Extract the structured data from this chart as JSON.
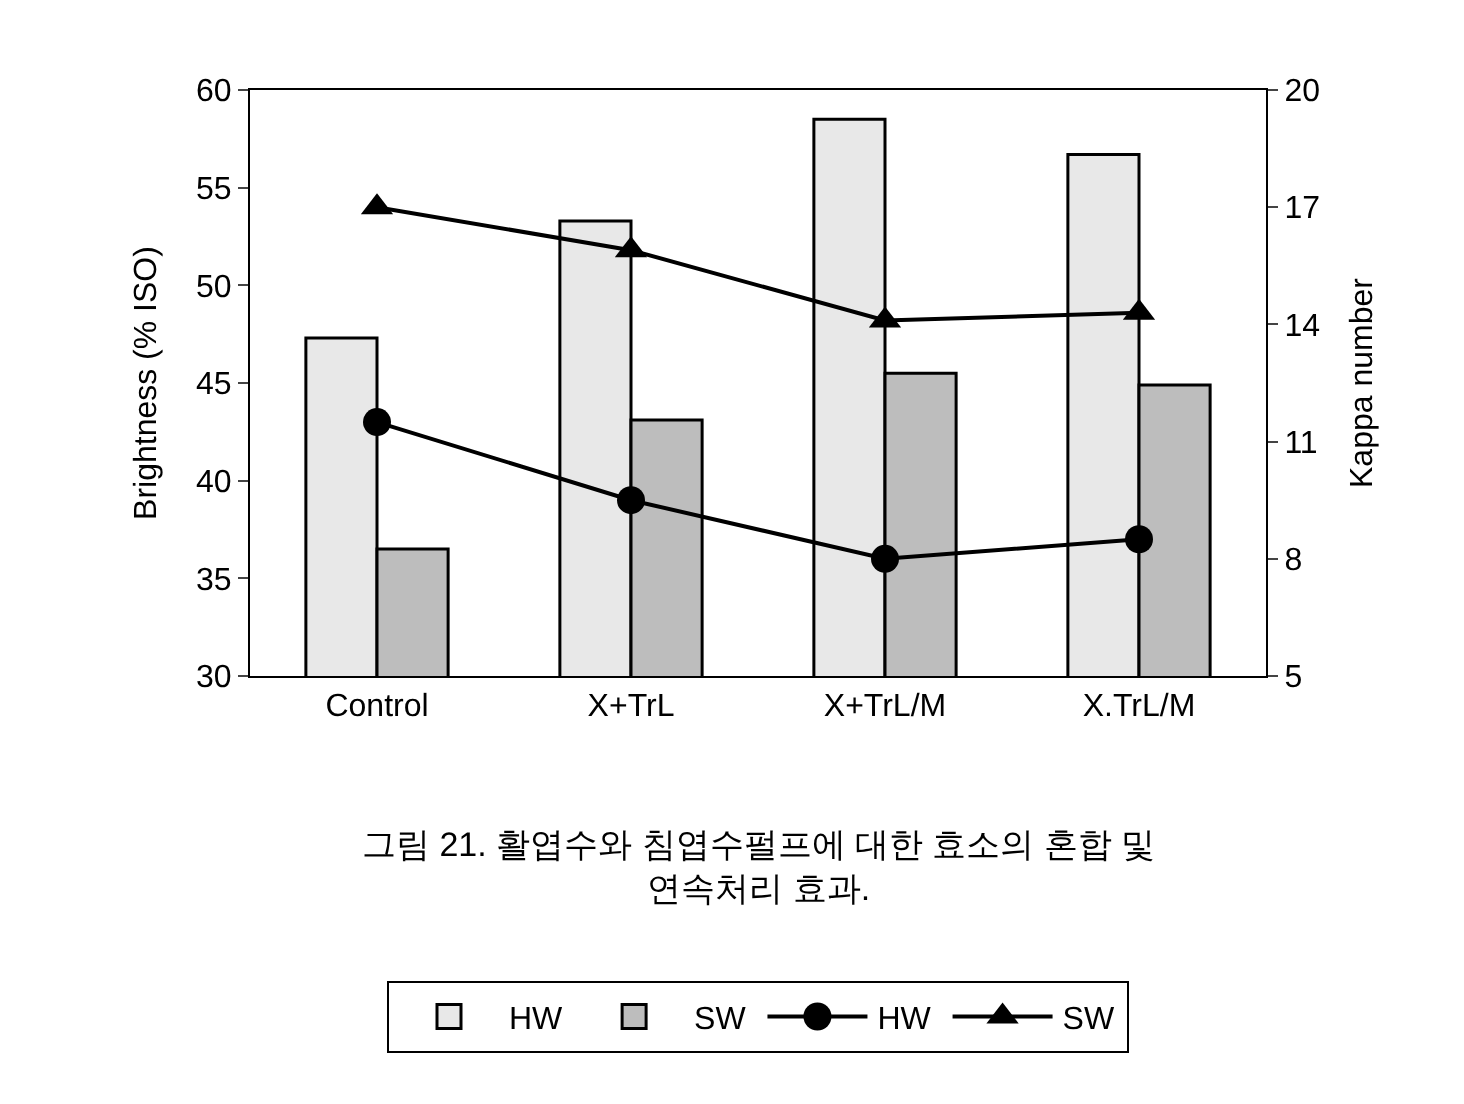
{
  "chart_data": {
    "type": "bar",
    "categories": [
      "Control",
      "X+TrL",
      "X+TrL/M",
      "X.TrL/M"
    ],
    "ylabel": "Brightness (% ISO)",
    "y2label": "Kappa number",
    "ylim": [
      30,
      60
    ],
    "yticks": [
      30,
      35,
      40,
      45,
      50,
      55,
      60
    ],
    "y2lim": [
      5,
      20
    ],
    "y2ticks": [
      5,
      8,
      11,
      14,
      17,
      20
    ],
    "series": [
      {
        "name": "HW",
        "color": "#e8e8e8",
        "values": [
          47.3,
          53.3,
          58.5,
          56.7
        ]
      },
      {
        "name": "SW",
        "color": "#bdbdbd",
        "values": [
          36.5,
          43.1,
          45.5,
          44.9
        ]
      },
      {
        "name": "HW",
        "type": "line",
        "axis": "y2",
        "marker": "circle",
        "color": "#000000",
        "values": [
          11.5,
          9.5,
          8.0,
          8.5
        ]
      },
      {
        "name": "SW",
        "type": "line",
        "axis": "y2",
        "marker": "triangle",
        "color": "#000000",
        "values": [
          17.0,
          15.9,
          14.1,
          14.3
        ]
      }
    ],
    "legend": "bottom",
    "annotations": [
      "그림 21. 활엽수와 침엽수펄프에 대한 효소의 혼합 및 연속처리 효과."
    ]
  }
}
